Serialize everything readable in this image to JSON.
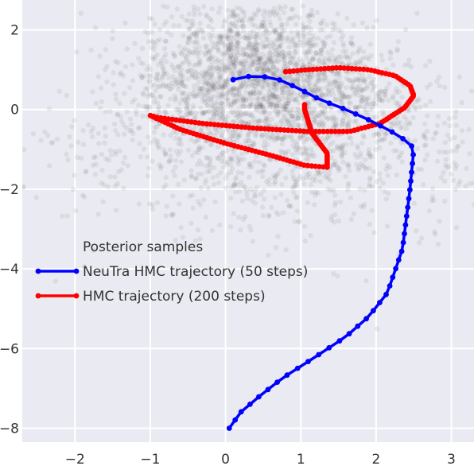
{
  "chart_data": {
    "type": "scatter",
    "title": "",
    "xlabel": "",
    "ylabel": "",
    "xlim": [
      -2.7,
      3.3
    ],
    "ylim": [
      -8.35,
      2.75
    ],
    "x_ticks": [
      -2,
      -1,
      0,
      1,
      2,
      3
    ],
    "y_ticks": [
      2,
      0,
      -2,
      -4,
      -6,
      -8
    ],
    "x_tick_labels": [
      "−2",
      "−1",
      "0",
      "1",
      "2",
      "3"
    ],
    "y_tick_labels": [
      "2",
      "0",
      "−2",
      "−4",
      "−6",
      "−8"
    ],
    "grid": true,
    "background": "#eaeaf2",
    "legend": {
      "placement": "center-left",
      "entries": [
        {
          "label": "Posterior samples",
          "color": "#555555",
          "marker": "none"
        },
        {
          "label": "NeuTra HMC trajectory (50 steps)",
          "color": "#0000ff",
          "marker": "dot-line"
        },
        {
          "label": "HMC trajectory (200 steps)",
          "color": "#ff0000",
          "marker": "dot-line"
        }
      ]
    },
    "series": [
      {
        "name": "Posterior samples",
        "kind": "scatter",
        "color": "#555555",
        "alpha": 0.1,
        "n_points": 3000,
        "distribution": {
          "center": [
            0.6,
            0.3
          ],
          "x_std": 1.1,
          "y_std": 1.4,
          "note": "funnel-like cloud, densest near (0.6, 0.2)"
        }
      },
      {
        "name": "NeuTra HMC trajectory (50 steps)",
        "kind": "line-markers",
        "color": "#0000ff",
        "keypoints": [
          [
            0.1,
            0.75
          ],
          [
            0.35,
            0.85
          ],
          [
            0.65,
            0.8
          ],
          [
            0.95,
            0.55
          ],
          [
            1.25,
            0.25
          ],
          [
            1.6,
            0.0
          ],
          [
            1.95,
            -0.3
          ],
          [
            2.25,
            -0.6
          ],
          [
            2.45,
            -0.85
          ],
          [
            2.5,
            -1.0
          ],
          [
            2.45,
            -2.0
          ],
          [
            2.35,
            -3.5
          ],
          [
            2.15,
            -4.6
          ],
          [
            1.9,
            -5.2
          ],
          [
            1.6,
            -5.7
          ],
          [
            1.2,
            -6.2
          ],
          [
            0.75,
            -6.75
          ],
          [
            0.45,
            -7.2
          ],
          [
            0.2,
            -7.6
          ],
          [
            0.05,
            -8.0
          ]
        ],
        "n_markers": 50
      },
      {
        "name": "HMC trajectory (200 steps)",
        "kind": "line-markers",
        "color": "#ff0000",
        "keypoints": [
          [
            0.8,
            0.95
          ],
          [
            1.1,
            1.0
          ],
          [
            1.5,
            1.05
          ],
          [
            1.9,
            1.0
          ],
          [
            2.25,
            0.85
          ],
          [
            2.45,
            0.6
          ],
          [
            2.5,
            0.35
          ],
          [
            2.38,
            0.05
          ],
          [
            2.05,
            -0.35
          ],
          [
            1.65,
            -0.55
          ],
          [
            1.1,
            -0.55
          ],
          [
            0.4,
            -0.47
          ],
          [
            -0.3,
            -0.35
          ],
          [
            -0.9,
            -0.2
          ],
          [
            -1.0,
            -0.15
          ],
          [
            -0.6,
            -0.5
          ],
          [
            0.0,
            -0.85
          ],
          [
            0.6,
            -1.15
          ],
          [
            1.05,
            -1.4
          ],
          [
            1.35,
            -1.45
          ],
          [
            1.35,
            -1.1
          ],
          [
            1.15,
            -0.6
          ],
          [
            1.05,
            0.0
          ],
          [
            1.05,
            0.12
          ]
        ],
        "n_markers": 200
      }
    ]
  }
}
